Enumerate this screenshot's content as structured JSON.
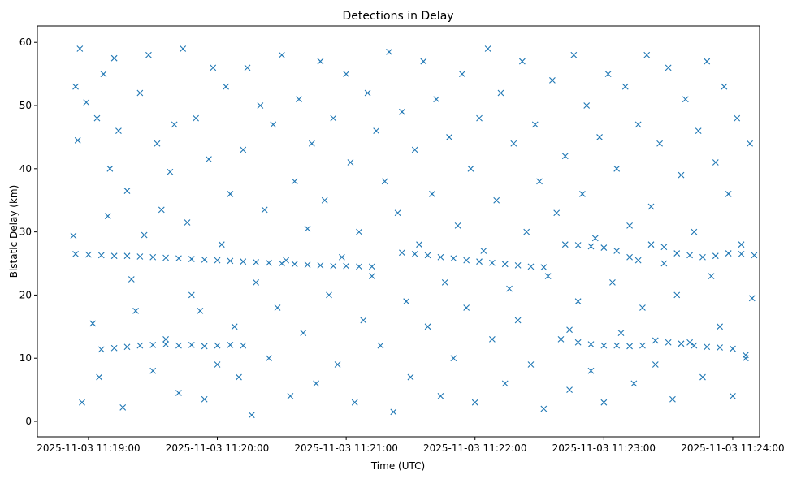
{
  "chart_data": {
    "type": "scatter",
    "title": "Detections in Delay",
    "xlabel": "Time (UTC)",
    "ylabel": "Bistatic Delay (km)",
    "x_units": "seconds after 2025-11-03 11:19:00",
    "xlim": [
      -23.8,
      312.5
    ],
    "ylim": [
      -2.44,
      62.6
    ],
    "x_ticks": [
      {
        "value": 0,
        "label": "2025-11-03 11:19:00"
      },
      {
        "value": 60,
        "label": "2025-11-03 11:20:00"
      },
      {
        "value": 120,
        "label": "2025-11-03 11:21:00"
      },
      {
        "value": 180,
        "label": "2025-11-03 11:22:00"
      },
      {
        "value": 240,
        "label": "2025-11-03 11:23:00"
      },
      {
        "value": 300,
        "label": "2025-11-03 11:24:00"
      }
    ],
    "y_ticks": [
      {
        "value": 0,
        "label": "0"
      },
      {
        "value": 10,
        "label": "10"
      },
      {
        "value": 20,
        "label": "20"
      },
      {
        "value": 30,
        "label": "30"
      },
      {
        "value": 40,
        "label": "40"
      },
      {
        "value": 50,
        "label": "50"
      },
      {
        "value": 60,
        "label": "60"
      }
    ],
    "grid": false,
    "marker": "x",
    "color": "#1f77b4",
    "series": [
      {
        "name": "detections",
        "points": [
          [
            -7,
            29.4
          ],
          [
            -6,
            53
          ],
          [
            -5,
            44.5
          ],
          [
            -4,
            59
          ],
          [
            -3,
            3
          ],
          [
            -1,
            50.5
          ],
          [
            2,
            15.5
          ],
          [
            4,
            48
          ],
          [
            5,
            7
          ],
          [
            7,
            55
          ],
          [
            9,
            32.5
          ],
          [
            10,
            40
          ],
          [
            12,
            57.5
          ],
          [
            14,
            46
          ],
          [
            16,
            2.2
          ],
          [
            18,
            36.5
          ],
          [
            20,
            22.5
          ],
          [
            22,
            17.5
          ],
          [
            24,
            52
          ],
          [
            26,
            29.5
          ],
          [
            28,
            58
          ],
          [
            30,
            8
          ],
          [
            32,
            44
          ],
          [
            34,
            33.5
          ],
          [
            36,
            13
          ],
          [
            38,
            39.5
          ],
          [
            40,
            47
          ],
          [
            42,
            4.5
          ],
          [
            44,
            59
          ],
          [
            46,
            31.5
          ],
          [
            48,
            20
          ],
          [
            50,
            48
          ],
          [
            52,
            17.5
          ],
          [
            54,
            3.5
          ],
          [
            56,
            41.5
          ],
          [
            58,
            56
          ],
          [
            60,
            9
          ],
          [
            62,
            28
          ],
          [
            64,
            53
          ],
          [
            66,
            36
          ],
          [
            68,
            15
          ],
          [
            70,
            7
          ],
          [
            72,
            43
          ],
          [
            74,
            56
          ],
          [
            76,
            1
          ],
          [
            78,
            22
          ],
          [
            80,
            50
          ],
          [
            82,
            33.5
          ],
          [
            84,
            10
          ],
          [
            86,
            47
          ],
          [
            88,
            18
          ],
          [
            90,
            58
          ],
          [
            92,
            25.5
          ],
          [
            94,
            4
          ],
          [
            96,
            38
          ],
          [
            98,
            51
          ],
          [
            100,
            14
          ],
          [
            102,
            30.5
          ],
          [
            104,
            44
          ],
          [
            106,
            6
          ],
          [
            108,
            57
          ],
          [
            110,
            35
          ],
          [
            112,
            20
          ],
          [
            114,
            48
          ],
          [
            116,
            9
          ],
          [
            118,
            26
          ],
          [
            120,
            55
          ],
          [
            122,
            41
          ],
          [
            124,
            3
          ],
          [
            126,
            30
          ],
          [
            128,
            16
          ],
          [
            130,
            52
          ],
          [
            132,
            23
          ],
          [
            134,
            46
          ],
          [
            136,
            12
          ],
          [
            138,
            38
          ],
          [
            140,
            58.5
          ],
          [
            142,
            1.5
          ],
          [
            144,
            33
          ],
          [
            146,
            49
          ],
          [
            148,
            19
          ],
          [
            150,
            7
          ],
          [
            152,
            43
          ],
          [
            154,
            28
          ],
          [
            156,
            57
          ],
          [
            158,
            15
          ],
          [
            160,
            36
          ],
          [
            162,
            51
          ],
          [
            164,
            4
          ],
          [
            166,
            22
          ],
          [
            168,
            45
          ],
          [
            170,
            10
          ],
          [
            172,
            31
          ],
          [
            174,
            55
          ],
          [
            176,
            18
          ],
          [
            178,
            40
          ],
          [
            180,
            3
          ],
          [
            182,
            48
          ],
          [
            184,
            27
          ],
          [
            186,
            59
          ],
          [
            188,
            13
          ],
          [
            190,
            35
          ],
          [
            192,
            52
          ],
          [
            194,
            6
          ],
          [
            196,
            21
          ],
          [
            198,
            44
          ],
          [
            200,
            16
          ],
          [
            202,
            57
          ],
          [
            204,
            30
          ],
          [
            206,
            9
          ],
          [
            208,
            47
          ],
          [
            210,
            38
          ],
          [
            212,
            2
          ],
          [
            214,
            23
          ],
          [
            216,
            54
          ],
          [
            218,
            33
          ],
          [
            220,
            13
          ],
          [
            222,
            42
          ],
          [
            224,
            5
          ],
          [
            226,
            58
          ],
          [
            228,
            19
          ],
          [
            230,
            36
          ],
          [
            232,
            50
          ],
          [
            234,
            8
          ],
          [
            236,
            29
          ],
          [
            238,
            45
          ],
          [
            240,
            3
          ],
          [
            242,
            55
          ],
          [
            244,
            22
          ],
          [
            246,
            40
          ],
          [
            248,
            14
          ],
          [
            250,
            53
          ],
          [
            252,
            31
          ],
          [
            254,
            6
          ],
          [
            256,
            47
          ],
          [
            258,
            18
          ],
          [
            260,
            58
          ],
          [
            262,
            34
          ],
          [
            264,
            9
          ],
          [
            266,
            44
          ],
          [
            268,
            25
          ],
          [
            270,
            56
          ],
          [
            272,
            3.5
          ],
          [
            274,
            20
          ],
          [
            276,
            39
          ],
          [
            278,
            51
          ],
          [
            280,
            12.5
          ],
          [
            282,
            30
          ],
          [
            284,
            46
          ],
          [
            286,
            7
          ],
          [
            288,
            57
          ],
          [
            290,
            23
          ],
          [
            292,
            41
          ],
          [
            294,
            15
          ],
          [
            296,
            53
          ],
          [
            298,
            36
          ],
          [
            300,
            4
          ],
          [
            302,
            48
          ],
          [
            304,
            28
          ],
          [
            306,
            10
          ],
          [
            308,
            44
          ],
          [
            309,
            19.5
          ],
          [
            -6,
            26.5
          ],
          [
            0,
            26.4
          ],
          [
            6,
            26.3
          ],
          [
            12,
            26.2
          ],
          [
            18,
            26.2
          ],
          [
            24,
            26.1
          ],
          [
            30,
            26.0
          ],
          [
            36,
            25.9
          ],
          [
            42,
            25.8
          ],
          [
            48,
            25.7
          ],
          [
            54,
            25.6
          ],
          [
            60,
            25.5
          ],
          [
            66,
            25.4
          ],
          [
            72,
            25.3
          ],
          [
            78,
            25.2
          ],
          [
            84,
            25.1
          ],
          [
            90,
            25.0
          ],
          [
            96,
            24.9
          ],
          [
            102,
            24.8
          ],
          [
            108,
            24.7
          ],
          [
            114,
            24.6
          ],
          [
            120,
            24.6
          ],
          [
            126,
            24.5
          ],
          [
            132,
            24.5
          ],
          [
            6,
            11.4
          ],
          [
            12,
            11.6
          ],
          [
            18,
            11.8
          ],
          [
            24,
            12.0
          ],
          [
            30,
            12.1
          ],
          [
            36,
            12.2
          ],
          [
            42,
            12.0
          ],
          [
            48,
            12.1
          ],
          [
            54,
            11.9
          ],
          [
            60,
            12.0
          ],
          [
            66,
            12.1
          ],
          [
            72,
            12.0
          ],
          [
            146,
            26.7
          ],
          [
            152,
            26.5
          ],
          [
            158,
            26.3
          ],
          [
            164,
            26.0
          ],
          [
            170,
            25.8
          ],
          [
            176,
            25.5
          ],
          [
            182,
            25.3
          ],
          [
            188,
            25.1
          ],
          [
            194,
            24.9
          ],
          [
            200,
            24.7
          ],
          [
            206,
            24.5
          ],
          [
            212,
            24.4
          ],
          [
            222,
            28.0
          ],
          [
            228,
            27.9
          ],
          [
            234,
            27.7
          ],
          [
            240,
            27.5
          ],
          [
            246,
            27.0
          ],
          [
            252,
            26.0
          ],
          [
            256,
            25.5
          ],
          [
            262,
            28.0
          ],
          [
            268,
            27.6
          ],
          [
            274,
            26.6
          ],
          [
            280,
            26.3
          ],
          [
            286,
            26.0
          ],
          [
            292,
            26.2
          ],
          [
            298,
            26.6
          ],
          [
            304,
            26.5
          ],
          [
            310,
            26.3
          ],
          [
            224,
            14.5
          ],
          [
            228,
            12.5
          ],
          [
            234,
            12.2
          ],
          [
            240,
            12.0
          ],
          [
            246,
            12.0
          ],
          [
            252,
            11.9
          ],
          [
            258,
            12.0
          ],
          [
            264,
            12.8
          ],
          [
            270,
            12.5
          ],
          [
            276,
            12.3
          ],
          [
            282,
            12.0
          ],
          [
            288,
            11.8
          ],
          [
            294,
            11.7
          ],
          [
            300,
            11.5
          ],
          [
            306,
            10.5
          ]
        ]
      }
    ]
  }
}
